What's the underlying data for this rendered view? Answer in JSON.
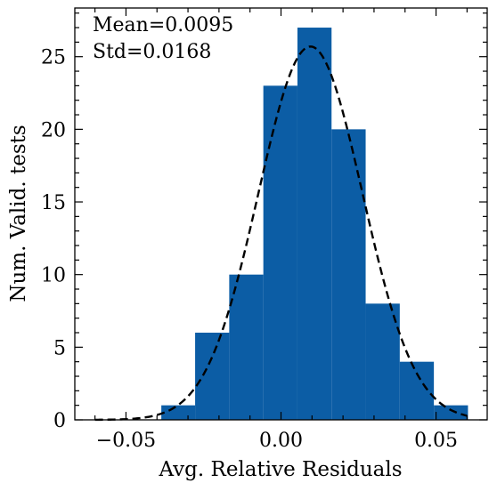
{
  "chart_data": {
    "type": "bar",
    "subtype": "histogram",
    "xlabel": "Avg. Relative Residuals",
    "ylabel": "Num. Valid. tests",
    "xlim": [
      -0.0665,
      0.0665
    ],
    "ylim": [
      0,
      28.35
    ],
    "grid": false,
    "bar_color": "#0c5da5",
    "curve_color": "#000000",
    "annotations": [
      "Mean=0.0095",
      "Std=0.0168"
    ],
    "x_ticks": [
      {
        "value": -0.05,
        "label": "−0.05"
      },
      {
        "value": 0.0,
        "label": "0.00"
      },
      {
        "value": 0.05,
        "label": "0.05"
      }
    ],
    "y_ticks": [
      {
        "value": 0,
        "label": "0"
      },
      {
        "value": 5,
        "label": "5"
      },
      {
        "value": 10,
        "label": "10"
      },
      {
        "value": 15,
        "label": "15"
      },
      {
        "value": 20,
        "label": "20"
      },
      {
        "value": 25,
        "label": "25"
      }
    ],
    "bins": [
      {
        "x0": -0.0386,
        "x1": -0.0277,
        "count": 1
      },
      {
        "x0": -0.0277,
        "x1": -0.0167,
        "count": 6
      },
      {
        "x0": -0.0167,
        "x1": -0.0057,
        "count": 10
      },
      {
        "x0": -0.0057,
        "x1": 0.0053,
        "count": 23
      },
      {
        "x0": 0.0053,
        "x1": 0.0163,
        "count": 27
      },
      {
        "x0": 0.0163,
        "x1": 0.0273,
        "count": 20
      },
      {
        "x0": 0.0273,
        "x1": 0.0383,
        "count": 8
      },
      {
        "x0": 0.0383,
        "x1": 0.0493,
        "count": 4
      },
      {
        "x0": 0.0493,
        "x1": 0.0603,
        "count": 1
      }
    ],
    "fit_curve": {
      "type": "normal",
      "mean": 0.0095,
      "std": 0.0168,
      "peak": 25.7,
      "x_range": [
        -0.06,
        0.06
      ],
      "style": "dashed"
    }
  }
}
